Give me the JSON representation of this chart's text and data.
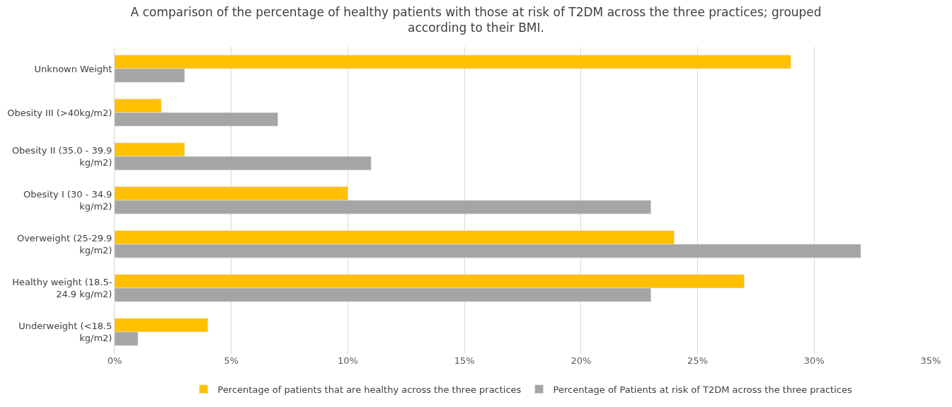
{
  "chart_data": {
    "type": "bar",
    "orientation": "horizontal",
    "title": "A comparison of the percentage of healthy patients with those at risk of T2DM across the three practices; grouped according to their BMI.",
    "categories": [
      "Unknown Weight",
      "Obesity III (>40kg/m2)",
      "Obesity II (35.0 - 39.9 kg/m2)",
      "Obesity I (30 - 34.9 kg/m2)",
      "Overweight (25-29.9 kg/m2)",
      "Healthy weight (18.5-24.9 kg/m2)",
      "Underweight (<18.5 kg/m2)"
    ],
    "series": [
      {
        "name": "Percentage of patients that are healthy across the three practices",
        "color": "#ffc000",
        "values": [
          29,
          2,
          3,
          10,
          24,
          27,
          4
        ]
      },
      {
        "name": "Percentage of Patients at risk of T2DM across the three practices",
        "color": "#a5a5a5",
        "values": [
          3,
          7,
          11,
          23,
          32,
          23,
          1
        ]
      }
    ],
    "xlim": [
      0,
      35
    ],
    "xticks": [
      {
        "value": 0,
        "label": "0%"
      },
      {
        "value": 5,
        "label": "5%"
      },
      {
        "value": 10,
        "label": "10%"
      },
      {
        "value": 15,
        "label": "15%"
      },
      {
        "value": 20,
        "label": "20%"
      },
      {
        "value": 25,
        "label": "25%"
      },
      {
        "value": 30,
        "label": "30%"
      },
      {
        "value": 35,
        "label": "35%"
      }
    ],
    "grid": "x",
    "legend": "bottom"
  }
}
